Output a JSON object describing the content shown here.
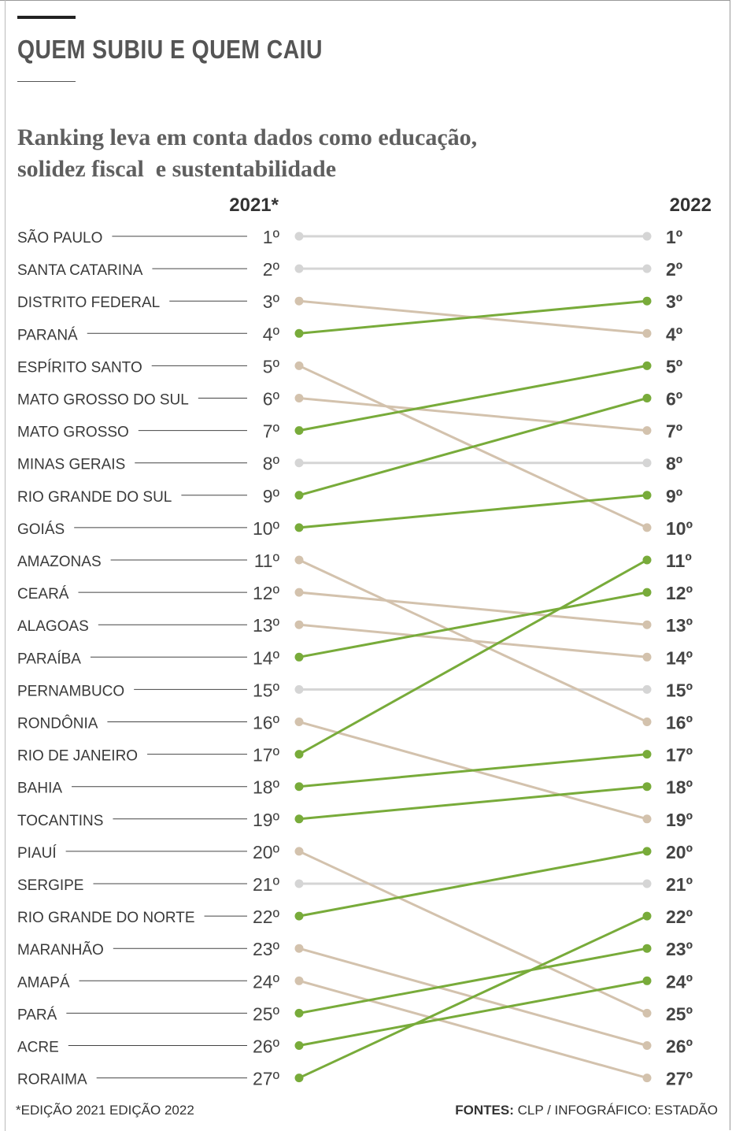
{
  "header": {
    "title": "QUEM SUBIU E QUEM CAIU",
    "subtitle_line1": "Ranking leva em conta dados como educação,",
    "subtitle_line2": "solidez fiscal  e sustentabilidade"
  },
  "colors": {
    "up": "#78ab3a",
    "down": "#d3c2ad",
    "same": "#d5d5d5",
    "leader": "#444444"
  },
  "chart_data": {
    "type": "slope",
    "title": "QUEM SUBIU E QUEM CAIU",
    "left_label": "2021*",
    "right_label": "2022",
    "states": [
      {
        "name": "SÃO PAULO",
        "rank2021": 1,
        "rank2022": 1
      },
      {
        "name": "SANTA CATARINA",
        "rank2021": 2,
        "rank2022": 2
      },
      {
        "name": "DISTRITO FEDERAL",
        "rank2021": 3,
        "rank2022": 4
      },
      {
        "name": "PARANÁ",
        "rank2021": 4,
        "rank2022": 3
      },
      {
        "name": "ESPÍRITO SANTO",
        "rank2021": 5,
        "rank2022": 10
      },
      {
        "name": "MATO GROSSO DO SUL",
        "rank2021": 6,
        "rank2022": 7
      },
      {
        "name": "MATO GROSSO",
        "rank2021": 7,
        "rank2022": 5
      },
      {
        "name": "MINAS GERAIS",
        "rank2021": 8,
        "rank2022": 8
      },
      {
        "name": "RIO GRANDE DO SUL",
        "rank2021": 9,
        "rank2022": 6
      },
      {
        "name": "GOIÁS",
        "rank2021": 10,
        "rank2022": 9
      },
      {
        "name": "AMAZONAS",
        "rank2021": 11,
        "rank2022": 16
      },
      {
        "name": "CEARÁ",
        "rank2021": 12,
        "rank2022": 13
      },
      {
        "name": "ALAGOAS",
        "rank2021": 13,
        "rank2022": 14
      },
      {
        "name": "PARAÍBA",
        "rank2021": 14,
        "rank2022": 12
      },
      {
        "name": "PERNAMBUCO",
        "rank2021": 15,
        "rank2022": 15
      },
      {
        "name": "RONDÔNIA",
        "rank2021": 16,
        "rank2022": 19
      },
      {
        "name": "RIO DE JANEIRO",
        "rank2021": 17,
        "rank2022": 11
      },
      {
        "name": "BAHIA",
        "rank2021": 18,
        "rank2022": 17
      },
      {
        "name": "TOCANTINS",
        "rank2021": 19,
        "rank2022": 18
      },
      {
        "name": "PIAUÍ",
        "rank2021": 20,
        "rank2022": 25
      },
      {
        "name": "SERGIPE",
        "rank2021": 21,
        "rank2022": 21
      },
      {
        "name": "RIO GRANDE DO NORTE",
        "rank2021": 22,
        "rank2022": 20
      },
      {
        "name": "MARANHÃO",
        "rank2021": 23,
        "rank2022": 26
      },
      {
        "name": "AMAPÁ",
        "rank2021": 24,
        "rank2022": 27
      },
      {
        "name": "PARÁ",
        "rank2021": 25,
        "rank2022": 23
      },
      {
        "name": "ACRE",
        "rank2021": 26,
        "rank2022": 24
      },
      {
        "name": "RORAIMA",
        "rank2021": 27,
        "rank2022": 22
      }
    ]
  },
  "footer": {
    "footnote": "*EDIÇÃO 2021 EDIÇÃO 2022",
    "sources_label": "FONTES:",
    "sources_text": " CLP / INFOGRÁFICO: ESTADÃO"
  }
}
